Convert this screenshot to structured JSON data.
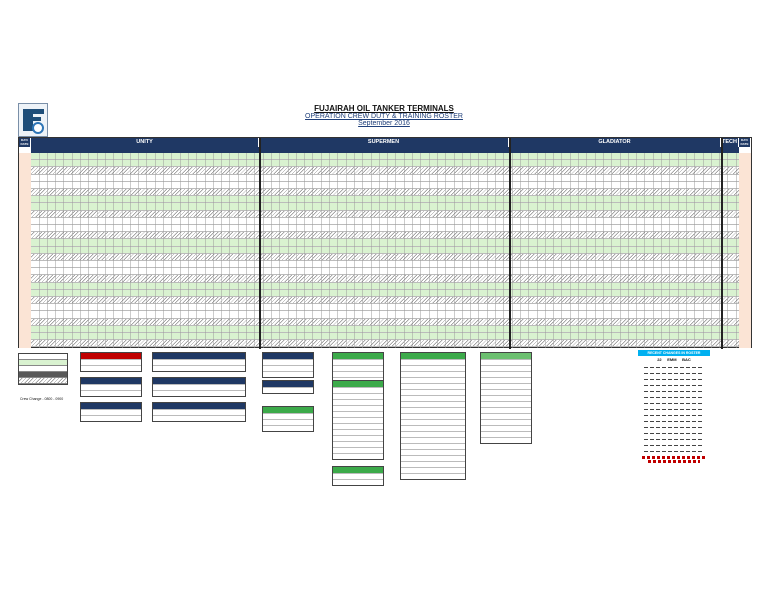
{
  "header": {
    "title": "FUJAIRAH OIL TANKER TERMINALS",
    "subtitle": "OPERATION CREW DUTY & TRAINING ROSTER",
    "period": "September 2016"
  },
  "teams": [
    {
      "label": "UNITY"
    },
    {
      "label": "SUPERMEN"
    },
    {
      "label": "GLADIATOR"
    },
    {
      "label": "TECH"
    }
  ],
  "day_date_label": "DAY/ DATE",
  "shift_codes": {
    "night": "N",
    "day": "D",
    "off": "/"
  },
  "crew_change_label": "Crew Change - 0800 - 0900",
  "recent_changes": {
    "title": "RECENT CHANGES IN ROSTER",
    "columns": [
      "22",
      "EMM",
      "BAC"
    ]
  },
  "colors": {
    "navy": "#1f3864",
    "night_green": "#d9f2d0",
    "date_peach": "#fbe4d5",
    "accent_cyan": "#00b0f0",
    "red": "#c00000",
    "green": "#3caa4a"
  }
}
